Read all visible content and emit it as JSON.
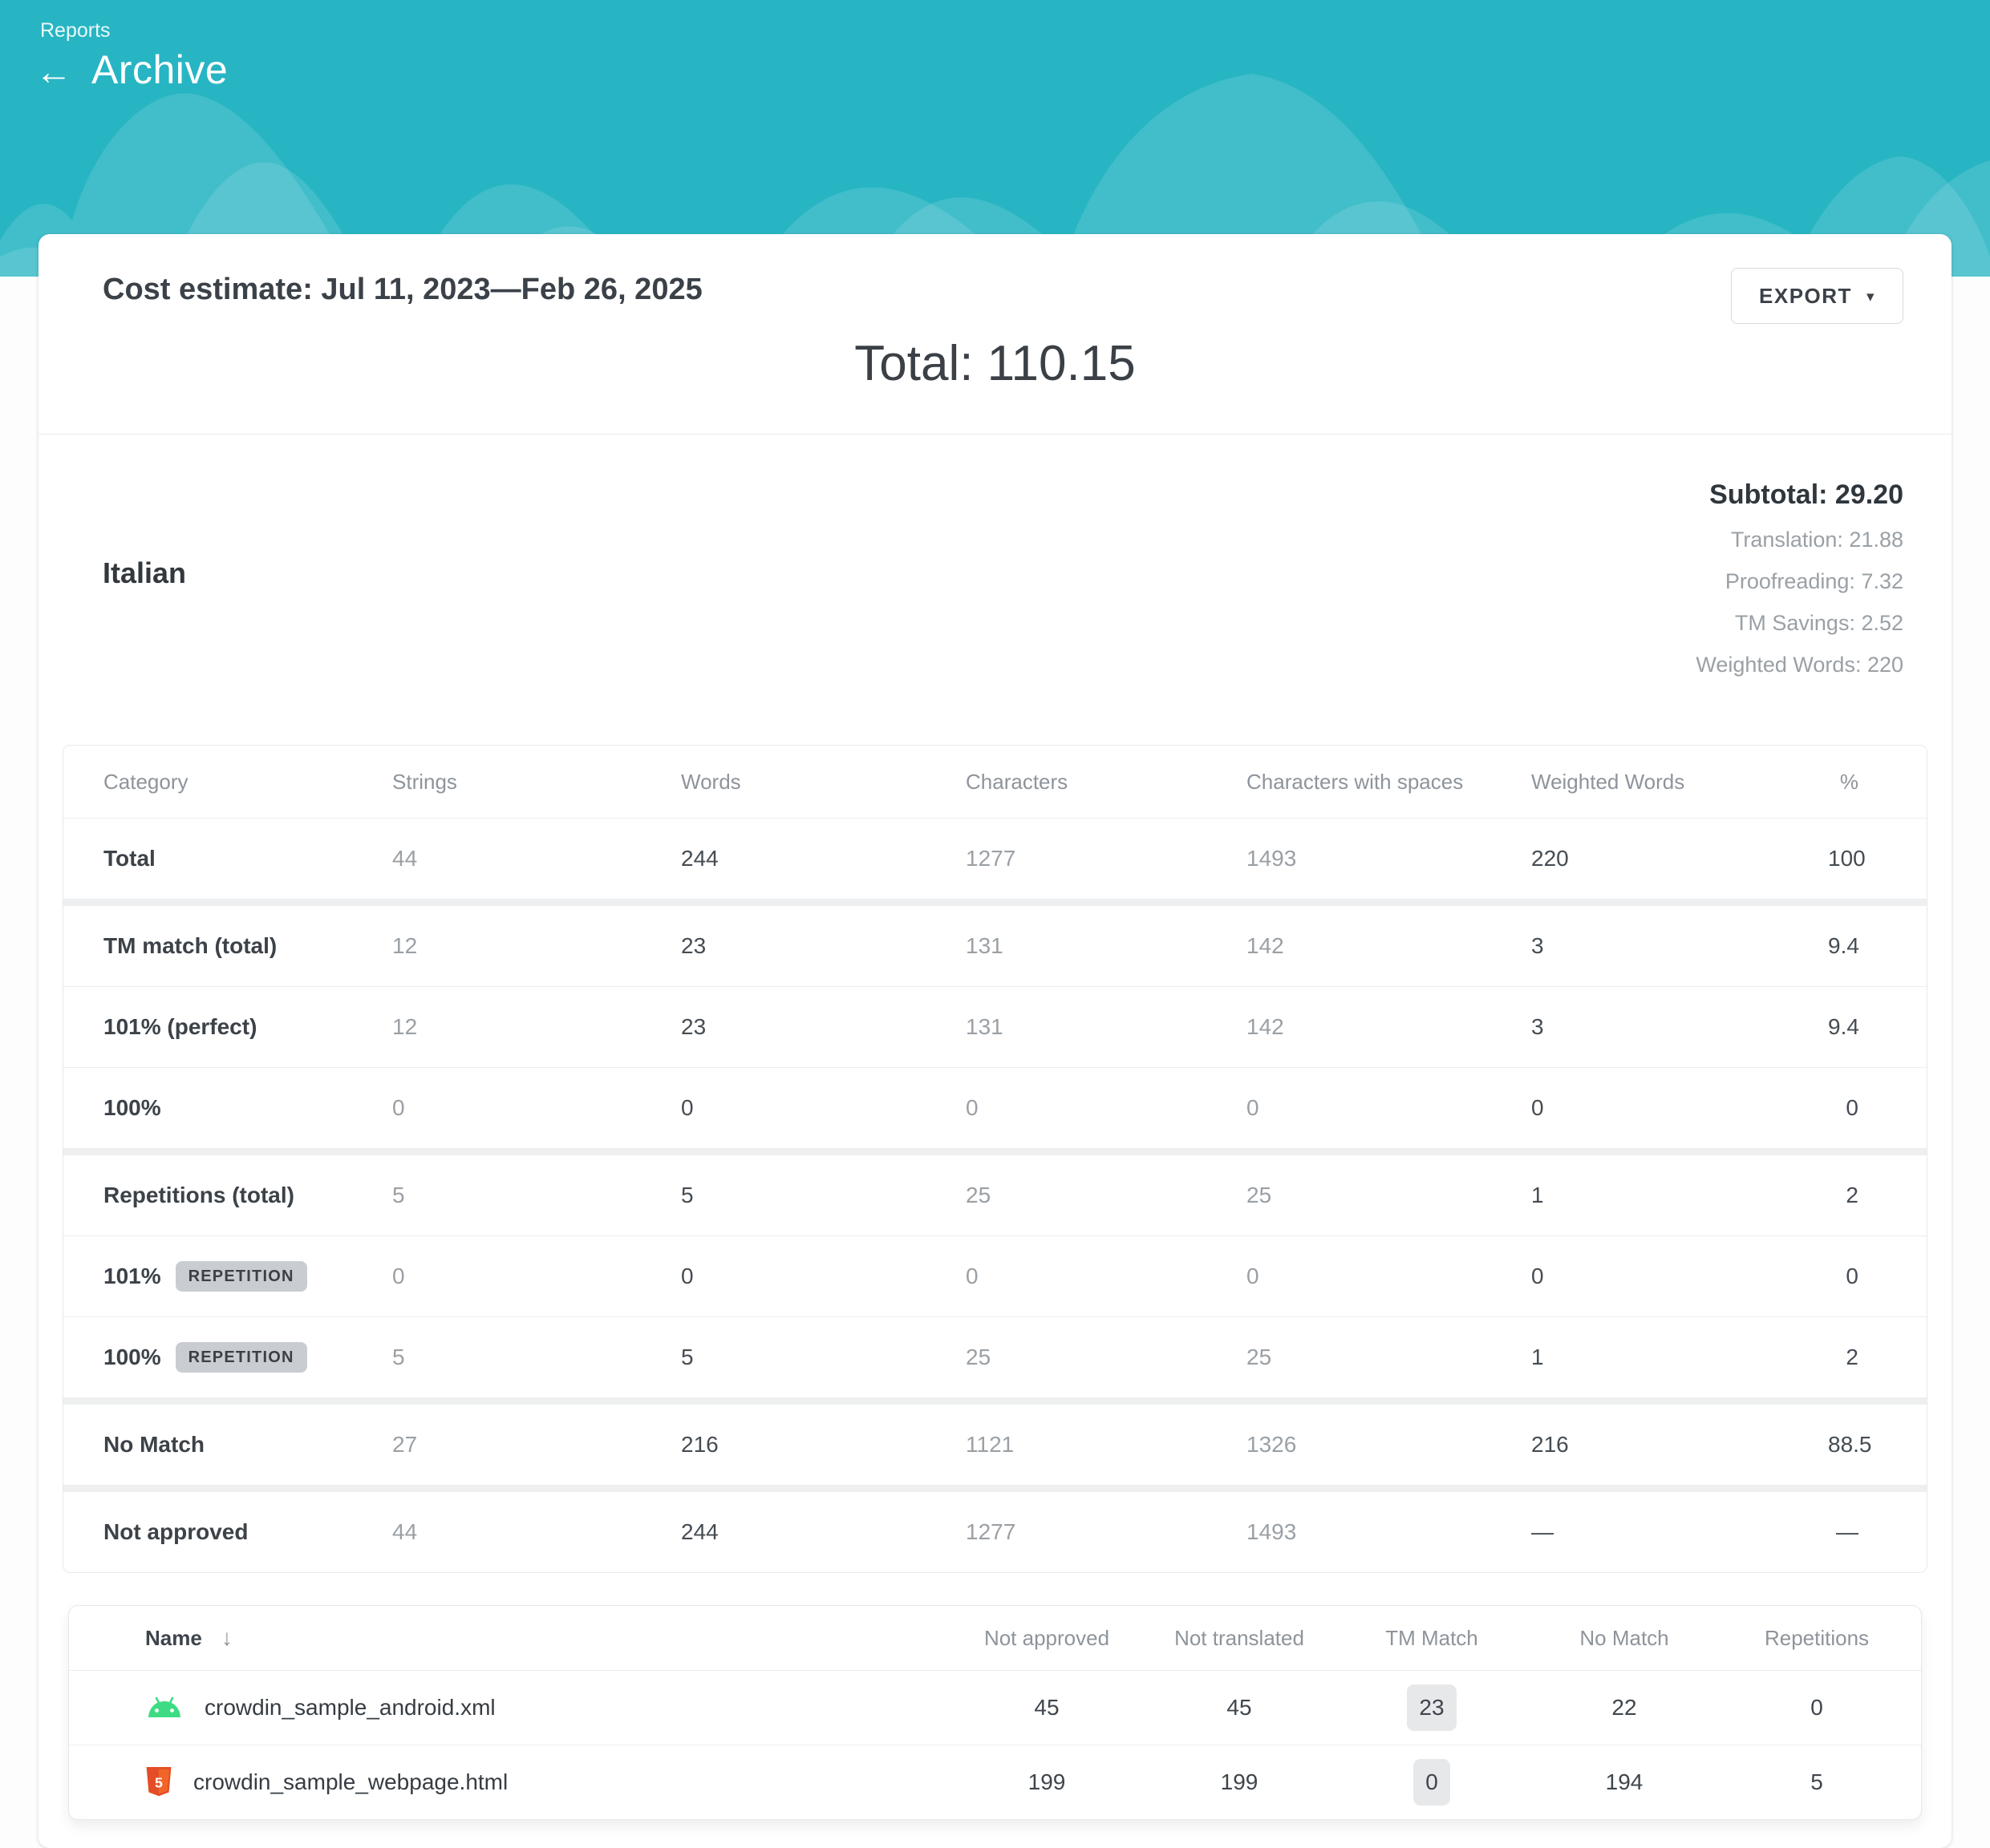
{
  "header": {
    "breadcrumb": "Reports",
    "back_arrow": "←",
    "title": "Archive"
  },
  "report": {
    "title": "Cost estimate: Jul 11, 2023—Feb 26, 2025",
    "export_label": "EXPORT",
    "export_caret": "▾",
    "total": "Total: 110.15"
  },
  "language": {
    "name": "Italian",
    "subtotal": "Subtotal: 29.20",
    "details": [
      "Translation: 21.88",
      "Proofreading: 7.32",
      "TM Savings: 2.52",
      "Weighted Words: 220"
    ]
  },
  "category_table": {
    "columns": [
      "Category",
      "Strings",
      "Words",
      "Characters",
      "Characters with spaces",
      "Weighted Words",
      "%"
    ],
    "muted_value_columns": [
      0,
      2,
      3
    ],
    "rows": [
      {
        "label": "Total",
        "values": [
          "44",
          "244",
          "1277",
          "1493",
          "220",
          "100"
        ],
        "band_after": true
      },
      {
        "label": "TM match (total)",
        "values": [
          "12",
          "23",
          "131",
          "142",
          "3",
          "9.4"
        ]
      },
      {
        "label": "101% (perfect)",
        "values": [
          "12",
          "23",
          "131",
          "142",
          "3",
          "9.4"
        ]
      },
      {
        "label": "100%",
        "values": [
          "0",
          "0",
          "0",
          "0",
          "0",
          "0"
        ],
        "band_after": true
      },
      {
        "label": "Repetitions (total)",
        "values": [
          "5",
          "5",
          "25",
          "25",
          "1",
          "2"
        ]
      },
      {
        "label": "101%",
        "badge": "REPETITION",
        "values": [
          "0",
          "0",
          "0",
          "0",
          "0",
          "0"
        ]
      },
      {
        "label": "100%",
        "badge": "REPETITION",
        "values": [
          "5",
          "5",
          "25",
          "25",
          "1",
          "2"
        ],
        "band_after": true
      },
      {
        "label": "No Match",
        "values": [
          "27",
          "216",
          "1121",
          "1326",
          "216",
          "88.5"
        ],
        "band_after": true
      },
      {
        "label": "Not approved",
        "values": [
          "44",
          "244",
          "1277",
          "1493",
          "—",
          "—"
        ]
      }
    ]
  },
  "files_table": {
    "columns": [
      "Name",
      "Not approved",
      "Not translated",
      "TM Match",
      "No Match",
      "Repetitions"
    ],
    "sort_icon": "↓",
    "pill_column": 2,
    "rows": [
      {
        "icon": "android",
        "name": "crowdin_sample_android.xml",
        "values": [
          "45",
          "45",
          "23",
          "22",
          "0"
        ]
      },
      {
        "icon": "html",
        "name": "crowdin_sample_webpage.html",
        "values": [
          "199",
          "199",
          "0",
          "194",
          "5"
        ]
      }
    ]
  },
  "colors": {
    "header_teal": "#27b5c3",
    "wave_overlay": "rgba(255,255,255,0.12)",
    "android_green": "#3ddc84",
    "html_orange": "#e44d26",
    "html_orange_light": "#f16529",
    "badge_gray": "#c9cdd2",
    "pill_gray": "#e6e8ea"
  }
}
